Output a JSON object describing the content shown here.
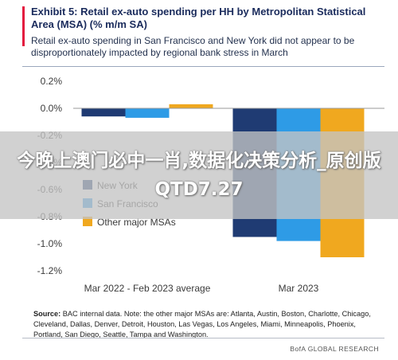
{
  "header": {
    "title": "Exhibit 5: Retail ex-auto spending per HH by Metropolitan Statistical Area (MSA) (% m/m SA)",
    "subtitle": "Retail ex-auto spending in San Francisco and New York did not appear to be disproportionately impacted by regional bank stress in March"
  },
  "chart_data": {
    "type": "bar",
    "categories": [
      "Mar 2022 - Feb 2023 average",
      "Mar 2023"
    ],
    "series": [
      {
        "name": "New York",
        "color": "#1f3b73",
        "values": [
          -0.06,
          -0.95
        ]
      },
      {
        "name": "San Francisco",
        "color": "#2e9be6",
        "values": [
          -0.07,
          -0.98
        ]
      },
      {
        "name": "Other major MSAs",
        "color": "#f0a81f",
        "values": [
          0.03,
          -1.1
        ]
      }
    ],
    "yticks": [
      "0.2%",
      "0.0%",
      "-0.2%",
      "-0.4%",
      "-0.6%",
      "-0.8%",
      "-1.0%",
      "-1.2%"
    ],
    "ylim": [
      -1.2,
      0.2
    ],
    "legend_position": "lower-left"
  },
  "source": {
    "label": "Source:",
    "text": "BAC internal data. Note: the other major MSAs are: Atlanta, Austin, Boston, Charlotte, Chicago, Cleveland, Dallas, Denver, Detroit, Houston, Las Vegas, Los Angeles, Miami, Minneapolis, Phoenix, Portland, San Diego, Seattle, Tampa and Washington."
  },
  "brand": "BofA GLOBAL RESEARCH",
  "overlay": {
    "text": "今晚上澳门必中一肖,数据化决策分析_原创版QTD7.27"
  }
}
